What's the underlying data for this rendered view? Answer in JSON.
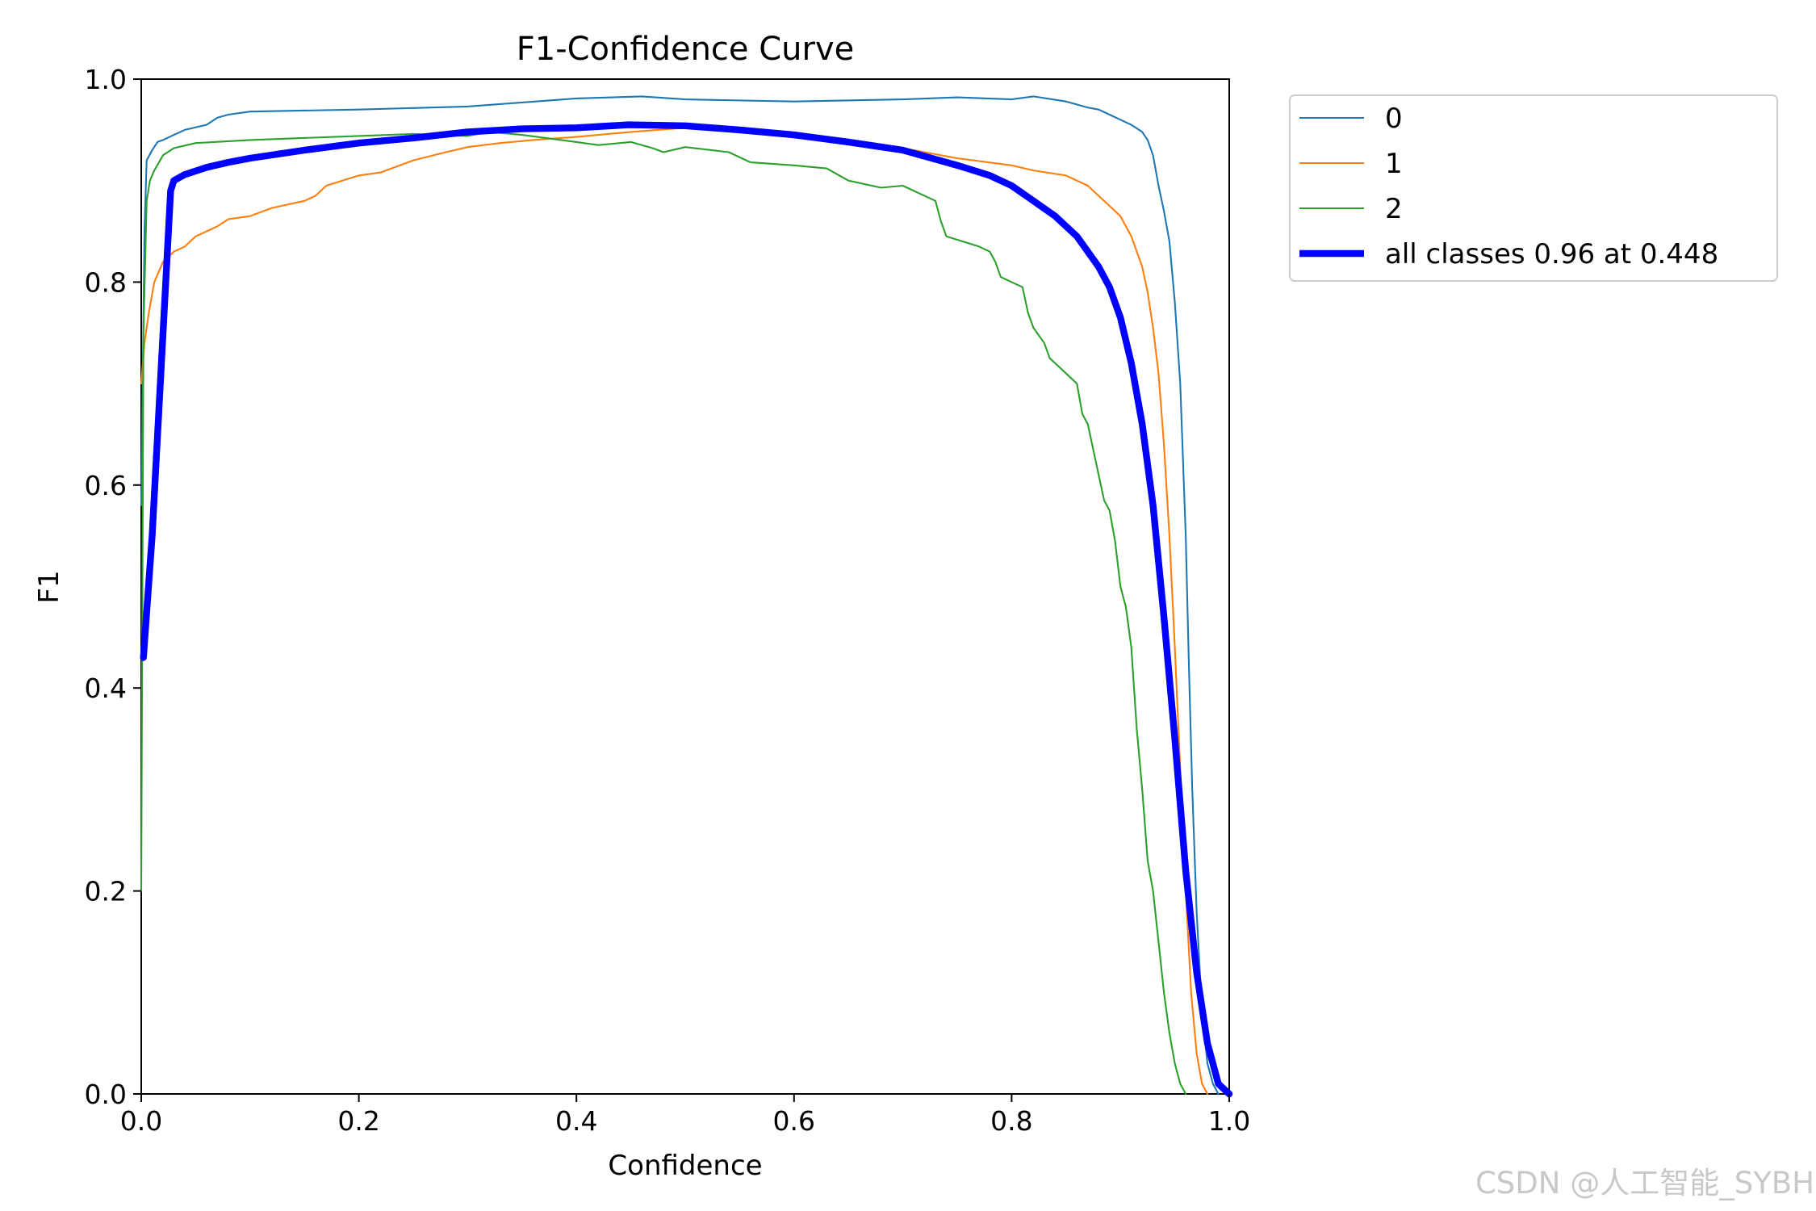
{
  "chart_data": {
    "type": "line",
    "title": "F1-Confidence Curve",
    "xlabel": "Confidence",
    "ylabel": "F1",
    "xlim": [
      0.0,
      1.0
    ],
    "ylim": [
      0.0,
      1.0
    ],
    "xticks": [
      "0.0",
      "0.2",
      "0.4",
      "0.6",
      "0.8",
      "1.0"
    ],
    "yticks": [
      "0.0",
      "0.2",
      "0.4",
      "0.6",
      "0.8",
      "1.0"
    ],
    "grid": false,
    "legend_position": "outside-top-right",
    "series": [
      {
        "name": "0",
        "color": "#1f77b4",
        "linewidth": 1.5,
        "points": [
          [
            0.0,
            0.58
          ],
          [
            0.003,
            0.85
          ],
          [
            0.005,
            0.92
          ],
          [
            0.01,
            0.93
          ],
          [
            0.015,
            0.938
          ],
          [
            0.02,
            0.94
          ],
          [
            0.03,
            0.945
          ],
          [
            0.04,
            0.95
          ],
          [
            0.06,
            0.955
          ],
          [
            0.07,
            0.962
          ],
          [
            0.08,
            0.965
          ],
          [
            0.1,
            0.968
          ],
          [
            0.2,
            0.97
          ],
          [
            0.3,
            0.973
          ],
          [
            0.35,
            0.977
          ],
          [
            0.4,
            0.981
          ],
          [
            0.46,
            0.983
          ],
          [
            0.5,
            0.98
          ],
          [
            0.6,
            0.978
          ],
          [
            0.7,
            0.98
          ],
          [
            0.75,
            0.982
          ],
          [
            0.8,
            0.98
          ],
          [
            0.82,
            0.983
          ],
          [
            0.85,
            0.978
          ],
          [
            0.87,
            0.972
          ],
          [
            0.88,
            0.97
          ],
          [
            0.89,
            0.965
          ],
          [
            0.9,
            0.96
          ],
          [
            0.91,
            0.955
          ],
          [
            0.92,
            0.948
          ],
          [
            0.925,
            0.94
          ],
          [
            0.93,
            0.925
          ],
          [
            0.935,
            0.895
          ],
          [
            0.94,
            0.87
          ],
          [
            0.945,
            0.84
          ],
          [
            0.95,
            0.78
          ],
          [
            0.955,
            0.7
          ],
          [
            0.96,
            0.55
          ],
          [
            0.963,
            0.42
          ],
          [
            0.966,
            0.3
          ],
          [
            0.97,
            0.18
          ],
          [
            0.975,
            0.08
          ],
          [
            0.98,
            0.03
          ],
          [
            0.985,
            0.01
          ],
          [
            0.99,
            0.0
          ]
        ]
      },
      {
        "name": "1",
        "color": "#ff7f0e",
        "linewidth": 1.5,
        "points": [
          [
            0.0,
            0.7
          ],
          [
            0.003,
            0.74
          ],
          [
            0.007,
            0.77
          ],
          [
            0.012,
            0.8
          ],
          [
            0.02,
            0.82
          ],
          [
            0.03,
            0.83
          ],
          [
            0.04,
            0.835
          ],
          [
            0.05,
            0.845
          ],
          [
            0.06,
            0.85
          ],
          [
            0.07,
            0.855
          ],
          [
            0.08,
            0.862
          ],
          [
            0.1,
            0.865
          ],
          [
            0.12,
            0.873
          ],
          [
            0.15,
            0.88
          ],
          [
            0.16,
            0.885
          ],
          [
            0.17,
            0.895
          ],
          [
            0.2,
            0.905
          ],
          [
            0.22,
            0.908
          ],
          [
            0.25,
            0.92
          ],
          [
            0.28,
            0.928
          ],
          [
            0.3,
            0.933
          ],
          [
            0.33,
            0.937
          ],
          [
            0.36,
            0.94
          ],
          [
            0.4,
            0.943
          ],
          [
            0.45,
            0.948
          ],
          [
            0.5,
            0.952
          ],
          [
            0.55,
            0.95
          ],
          [
            0.6,
            0.945
          ],
          [
            0.65,
            0.94
          ],
          [
            0.7,
            0.932
          ],
          [
            0.75,
            0.922
          ],
          [
            0.8,
            0.915
          ],
          [
            0.82,
            0.91
          ],
          [
            0.85,
            0.905
          ],
          [
            0.87,
            0.895
          ],
          [
            0.89,
            0.875
          ],
          [
            0.9,
            0.865
          ],
          [
            0.91,
            0.845
          ],
          [
            0.92,
            0.815
          ],
          [
            0.925,
            0.79
          ],
          [
            0.93,
            0.755
          ],
          [
            0.935,
            0.71
          ],
          [
            0.94,
            0.64
          ],
          [
            0.945,
            0.55
          ],
          [
            0.95,
            0.44
          ],
          [
            0.955,
            0.32
          ],
          [
            0.96,
            0.2
          ],
          [
            0.965,
            0.1
          ],
          [
            0.97,
            0.04
          ],
          [
            0.975,
            0.01
          ],
          [
            0.98,
            0.0
          ]
        ]
      },
      {
        "name": "2",
        "color": "#2ca02c",
        "linewidth": 1.5,
        "points": [
          [
            0.0,
            0.2
          ],
          [
            0.002,
            0.75
          ],
          [
            0.005,
            0.88
          ],
          [
            0.008,
            0.9
          ],
          [
            0.012,
            0.91
          ],
          [
            0.02,
            0.925
          ],
          [
            0.03,
            0.932
          ],
          [
            0.05,
            0.937
          ],
          [
            0.1,
            0.94
          ],
          [
            0.2,
            0.944
          ],
          [
            0.25,
            0.946
          ],
          [
            0.3,
            0.944
          ],
          [
            0.32,
            0.948
          ],
          [
            0.35,
            0.945
          ],
          [
            0.4,
            0.938
          ],
          [
            0.42,
            0.935
          ],
          [
            0.45,
            0.938
          ],
          [
            0.47,
            0.932
          ],
          [
            0.48,
            0.928
          ],
          [
            0.5,
            0.933
          ],
          [
            0.54,
            0.928
          ],
          [
            0.56,
            0.918
          ],
          [
            0.6,
            0.915
          ],
          [
            0.63,
            0.912
          ],
          [
            0.65,
            0.9
          ],
          [
            0.68,
            0.893
          ],
          [
            0.7,
            0.895
          ],
          [
            0.72,
            0.885
          ],
          [
            0.73,
            0.88
          ],
          [
            0.735,
            0.86
          ],
          [
            0.74,
            0.845
          ],
          [
            0.77,
            0.835
          ],
          [
            0.78,
            0.83
          ],
          [
            0.785,
            0.82
          ],
          [
            0.79,
            0.805
          ],
          [
            0.8,
            0.8
          ],
          [
            0.81,
            0.795
          ],
          [
            0.815,
            0.77
          ],
          [
            0.82,
            0.755
          ],
          [
            0.83,
            0.74
          ],
          [
            0.835,
            0.725
          ],
          [
            0.845,
            0.715
          ],
          [
            0.855,
            0.705
          ],
          [
            0.86,
            0.7
          ],
          [
            0.865,
            0.67
          ],
          [
            0.87,
            0.66
          ],
          [
            0.875,
            0.635
          ],
          [
            0.88,
            0.61
          ],
          [
            0.885,
            0.585
          ],
          [
            0.89,
            0.575
          ],
          [
            0.895,
            0.545
          ],
          [
            0.9,
            0.5
          ],
          [
            0.905,
            0.48
          ],
          [
            0.91,
            0.44
          ],
          [
            0.915,
            0.36
          ],
          [
            0.92,
            0.3
          ],
          [
            0.925,
            0.23
          ],
          [
            0.93,
            0.2
          ],
          [
            0.935,
            0.15
          ],
          [
            0.94,
            0.1
          ],
          [
            0.945,
            0.06
          ],
          [
            0.95,
            0.03
          ],
          [
            0.955,
            0.01
          ],
          [
            0.96,
            0.0
          ]
        ]
      },
      {
        "name": "all classes 0.96 at 0.448",
        "color": "#0000ff",
        "linewidth": 6,
        "points": [
          [
            0.002,
            0.43
          ],
          [
            0.01,
            0.55
          ],
          [
            0.02,
            0.75
          ],
          [
            0.027,
            0.89
          ],
          [
            0.03,
            0.9
          ],
          [
            0.04,
            0.906
          ],
          [
            0.06,
            0.913
          ],
          [
            0.08,
            0.918
          ],
          [
            0.1,
            0.922
          ],
          [
            0.15,
            0.93
          ],
          [
            0.2,
            0.937
          ],
          [
            0.25,
            0.942
          ],
          [
            0.3,
            0.948
          ],
          [
            0.35,
            0.951
          ],
          [
            0.4,
            0.952
          ],
          [
            0.448,
            0.955
          ],
          [
            0.5,
            0.954
          ],
          [
            0.55,
            0.95
          ],
          [
            0.6,
            0.945
          ],
          [
            0.65,
            0.938
          ],
          [
            0.7,
            0.93
          ],
          [
            0.75,
            0.915
          ],
          [
            0.78,
            0.905
          ],
          [
            0.8,
            0.895
          ],
          [
            0.82,
            0.88
          ],
          [
            0.84,
            0.865
          ],
          [
            0.86,
            0.845
          ],
          [
            0.88,
            0.815
          ],
          [
            0.89,
            0.795
          ],
          [
            0.9,
            0.765
          ],
          [
            0.91,
            0.72
          ],
          [
            0.92,
            0.66
          ],
          [
            0.93,
            0.58
          ],
          [
            0.94,
            0.47
          ],
          [
            0.95,
            0.35
          ],
          [
            0.96,
            0.22
          ],
          [
            0.97,
            0.12
          ],
          [
            0.98,
            0.05
          ],
          [
            0.99,
            0.01
          ],
          [
            1.0,
            0.0
          ]
        ]
      }
    ]
  },
  "watermark": "CSDN @人工智能_SYBH"
}
